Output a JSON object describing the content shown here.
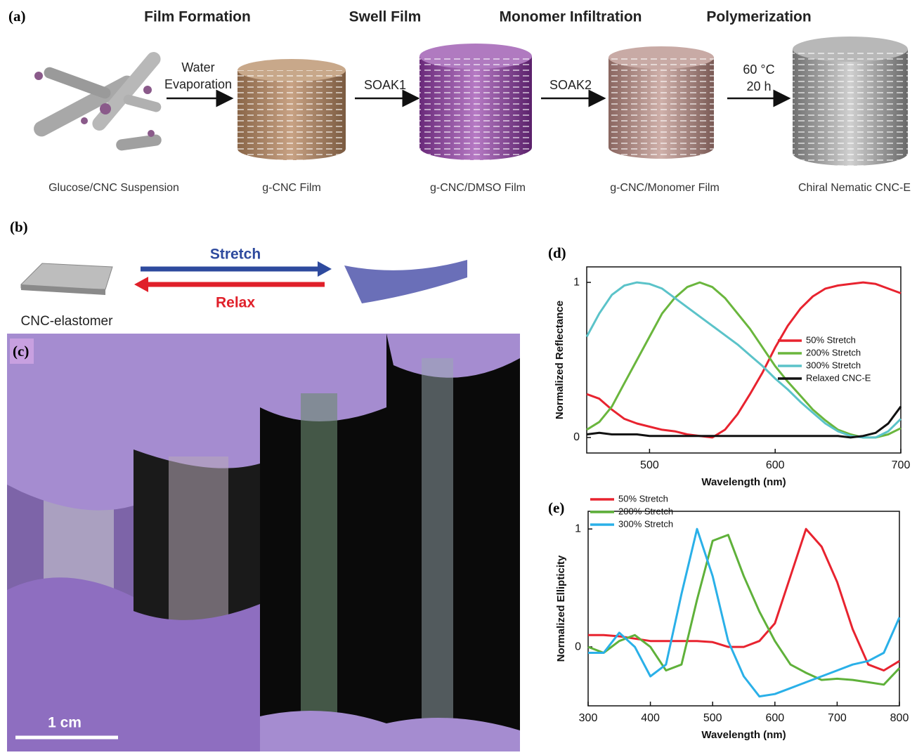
{
  "figure": {
    "panel_labels": [
      "(a)",
      "(b)",
      "(c)",
      "(d)",
      "(e)"
    ],
    "steps": [
      "Film Formation",
      "Swell Film",
      "Monomer Infiltration",
      "Polymerization"
    ],
    "arrow_labels": [
      [
        "Water",
        "Evaporation"
      ],
      [
        "SOAK1"
      ],
      [
        "SOAK2"
      ],
      [
        "60 °C",
        "20 h"
      ]
    ],
    "captions": [
      "Glucose/CNC Suspension",
      "g-CNC Film",
      "g-CNC/DMSO Film",
      "g-CNC/Monomer Film",
      "Chiral Nematic CNC-E"
    ],
    "stretch": "Stretch",
    "relax": "Relax",
    "sample": "CNC-elastomer",
    "scale_bar": "1 cm"
  },
  "chart_data": [
    {
      "type": "line",
      "xlabel": "Wavelength (nm)",
      "ylabel": "Normalized Reflectance",
      "xlim": [
        450,
        700
      ],
      "ylim": [
        -0.1,
        1.1
      ],
      "xticks": [
        500,
        600,
        700
      ],
      "yticks": [
        0,
        1
      ],
      "legend": "right",
      "x": [
        450,
        460,
        470,
        480,
        490,
        500,
        510,
        520,
        530,
        540,
        550,
        560,
        570,
        580,
        590,
        600,
        610,
        620,
        630,
        640,
        650,
        660,
        670,
        680,
        690,
        700
      ],
      "series": [
        {
          "name": "50% Stretch",
          "color": "#e8232f",
          "values": [
            0.28,
            0.25,
            0.18,
            0.12,
            0.09,
            0.07,
            0.05,
            0.04,
            0.02,
            0.01,
            0.0,
            0.05,
            0.15,
            0.28,
            0.42,
            0.58,
            0.72,
            0.83,
            0.91,
            0.96,
            0.98,
            0.99,
            1.0,
            0.99,
            0.96,
            0.93
          ]
        },
        {
          "name": "200% Stretch",
          "color": "#6ab63d",
          "values": [
            0.05,
            0.1,
            0.2,
            0.35,
            0.5,
            0.65,
            0.8,
            0.9,
            0.97,
            1.0,
            0.97,
            0.9,
            0.8,
            0.7,
            0.58,
            0.46,
            0.36,
            0.27,
            0.18,
            0.11,
            0.05,
            0.02,
            0.0,
            0.0,
            0.02,
            0.06
          ]
        },
        {
          "name": "300% Stretch",
          "color": "#5bc3c9",
          "values": [
            0.65,
            0.8,
            0.92,
            0.98,
            1.0,
            0.99,
            0.96,
            0.9,
            0.84,
            0.78,
            0.72,
            0.66,
            0.6,
            0.53,
            0.46,
            0.38,
            0.31,
            0.23,
            0.16,
            0.09,
            0.04,
            0.01,
            0.0,
            0.0,
            0.04,
            0.12
          ]
        },
        {
          "name": "Relaxed CNC-E",
          "color": "#111111",
          "values": [
            0.02,
            0.03,
            0.02,
            0.02,
            0.02,
            0.01,
            0.01,
            0.01,
            0.01,
            0.01,
            0.01,
            0.01,
            0.01,
            0.01,
            0.01,
            0.01,
            0.01,
            0.01,
            0.01,
            0.01,
            0.01,
            0.0,
            0.01,
            0.03,
            0.09,
            0.2
          ]
        }
      ]
    },
    {
      "type": "line",
      "xlabel": "Wavelength (nm)",
      "ylabel": "Normalized Ellipticity",
      "xlim": [
        300,
        800
      ],
      "ylim": [
        -0.5,
        1.15
      ],
      "xticks": [
        300,
        400,
        500,
        600,
        700,
        800
      ],
      "yticks": [
        0,
        1
      ],
      "legend": "upper left",
      "x": [
        300,
        325,
        350,
        375,
        400,
        425,
        450,
        475,
        500,
        525,
        550,
        575,
        600,
        625,
        650,
        675,
        700,
        725,
        750,
        775,
        800
      ],
      "series": [
        {
          "name": "50% Stretch",
          "color": "#e8232f",
          "values": [
            0.1,
            0.1,
            0.09,
            0.07,
            0.05,
            0.05,
            0.05,
            0.05,
            0.04,
            0.0,
            0.0,
            0.05,
            0.2,
            0.6,
            1.0,
            0.85,
            0.55,
            0.15,
            -0.15,
            -0.2,
            -0.12
          ]
        },
        {
          "name": "200% Stretch",
          "color": "#5fb13a",
          "values": [
            0.0,
            -0.05,
            0.05,
            0.1,
            0.0,
            -0.2,
            -0.15,
            0.4,
            0.9,
            0.95,
            0.6,
            0.3,
            0.05,
            -0.15,
            -0.22,
            -0.28,
            -0.27,
            -0.28,
            -0.3,
            -0.32,
            -0.18
          ]
        },
        {
          "name": "300% Stretch",
          "color": "#2ab0e8",
          "values": [
            -0.05,
            -0.05,
            0.12,
            0.0,
            -0.25,
            -0.15,
            0.45,
            1.0,
            0.6,
            0.05,
            -0.25,
            -0.42,
            -0.4,
            -0.35,
            -0.3,
            -0.25,
            -0.2,
            -0.15,
            -0.12,
            -0.05,
            0.25
          ]
        }
      ]
    }
  ]
}
